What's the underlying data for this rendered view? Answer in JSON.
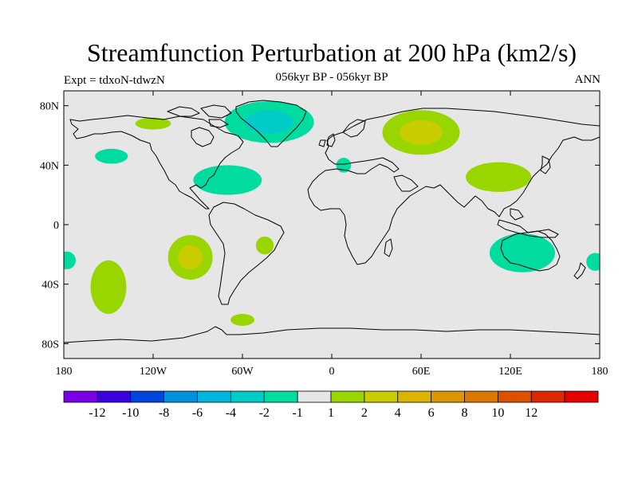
{
  "title": "Streamfunction Perturbation at 200 hPa (km2/s)",
  "subtitle": "056kyr BP - 056kyr BP",
  "left_label": "Expt = tdxoN-tdwzN",
  "right_label": "ANN",
  "map": {
    "lon_range": [
      -180,
      180
    ],
    "lat_range": [
      -90,
      90
    ],
    "background_color": "#e6e6e6",
    "y_ticks": [
      {
        "lat": 80,
        "label": "80N"
      },
      {
        "lat": 40,
        "label": "40N"
      },
      {
        "lat": 0,
        "label": "0"
      },
      {
        "lat": -40,
        "label": "40S"
      },
      {
        "lat": -80,
        "label": "80S"
      }
    ],
    "x_ticks": [
      {
        "lon": -180,
        "label": "180"
      },
      {
        "lon": -120,
        "label": "120W"
      },
      {
        "lon": -60,
        "label": "60W"
      },
      {
        "lon": 0,
        "label": "0"
      },
      {
        "lon": 60,
        "label": "60E"
      },
      {
        "lon": 120,
        "label": "120E"
      },
      {
        "lon": 180,
        "label": "180"
      }
    ],
    "anomalies": [
      {
        "name": "north-atlantic-negative",
        "lon": -42,
        "lat": 69,
        "rlon": 30,
        "rlat": 14,
        "color": "#00ccc7",
        "outer": "#00dca0"
      },
      {
        "name": "arctic-positive-west",
        "lon": -120,
        "lat": 68,
        "rlon": 12,
        "rlat": 4,
        "color": "#99d600",
        "outer": null
      },
      {
        "name": "eurasia-positive",
        "lon": 60,
        "lat": 62,
        "rlon": 26,
        "rlat": 15,
        "color": "#c8cc00",
        "outer": "#99d600"
      },
      {
        "name": "north-pacific-negative",
        "lon": -148,
        "lat": 46,
        "rlon": 11,
        "rlat": 5,
        "color": "#00dca0",
        "outer": null
      },
      {
        "name": "gulf-negative",
        "lon": -70,
        "lat": 30,
        "rlon": 23,
        "rlat": 10,
        "color": "#00dca0",
        "outer": null
      },
      {
        "name": "mediterranean-negative",
        "lon": 8,
        "lat": 40,
        "rlon": 5,
        "rlat": 5,
        "color": "#00dca0",
        "outer": null
      },
      {
        "name": "east-asia-positive",
        "lon": 112,
        "lat": 32,
        "rlon": 22,
        "rlat": 10,
        "color": "#99d600",
        "outer": null
      },
      {
        "name": "south-pacific-positive-central",
        "lon": -95,
        "lat": -22,
        "rlon": 15,
        "rlat": 15,
        "color": "#c8cc00",
        "outer": "#99d600"
      },
      {
        "name": "south-atlantic-positive",
        "lon": -45,
        "lat": -14,
        "rlon": 6,
        "rlat": 6,
        "color": "#99d600",
        "outer": null
      },
      {
        "name": "south-pacific-positive-west",
        "lon": -150,
        "lat": -42,
        "rlon": 12,
        "rlat": 18,
        "color": "#99d600",
        "outer": null
      },
      {
        "name": "australia-negative",
        "lon": 128,
        "lat": -19,
        "rlon": 22,
        "rlat": 13,
        "color": "#00dca0",
        "outer": null
      },
      {
        "name": "dateline-east-negative",
        "lon": 177,
        "lat": -25,
        "rlon": 6,
        "rlat": 6,
        "color": "#00dca0",
        "outer": null
      },
      {
        "name": "dateline-west-negative",
        "lon": -178,
        "lat": -24,
        "rlon": 6,
        "rlat": 6,
        "color": "#00dca0",
        "outer": null
      },
      {
        "name": "antarctic-peninsula-positive",
        "lon": -60,
        "lat": -64,
        "rlon": 8,
        "rlat": 4,
        "color": "#99d600",
        "outer": null
      }
    ]
  },
  "colorbar": {
    "colors": [
      "#7a00e6",
      "#3b00dc",
      "#0046dc",
      "#0090dc",
      "#00b4dc",
      "#00ccc7",
      "#00dca0",
      "#e6e6e6",
      "#99d600",
      "#c8cc00",
      "#dcb400",
      "#dc9600",
      "#dc7800",
      "#dc5000",
      "#dc2800",
      "#e60000"
    ],
    "labels": [
      {
        "after_box": 1,
        "text": "-12"
      },
      {
        "after_box": 2,
        "text": "-10"
      },
      {
        "after_box": 3,
        "text": "-8"
      },
      {
        "after_box": 4,
        "text": "-6"
      },
      {
        "after_box": 5,
        "text": "-4"
      },
      {
        "after_box": 6,
        "text": "-2"
      },
      {
        "after_box": 7,
        "text": "-1"
      },
      {
        "after_box": 8,
        "text": "1"
      },
      {
        "after_box": 9,
        "text": "2"
      },
      {
        "after_box": 10,
        "text": "4"
      },
      {
        "after_box": 11,
        "text": "6"
      },
      {
        "after_box": 12,
        "text": "8"
      },
      {
        "after_box": 13,
        "text": "10"
      },
      {
        "after_box": 14,
        "text": "12"
      }
    ]
  }
}
